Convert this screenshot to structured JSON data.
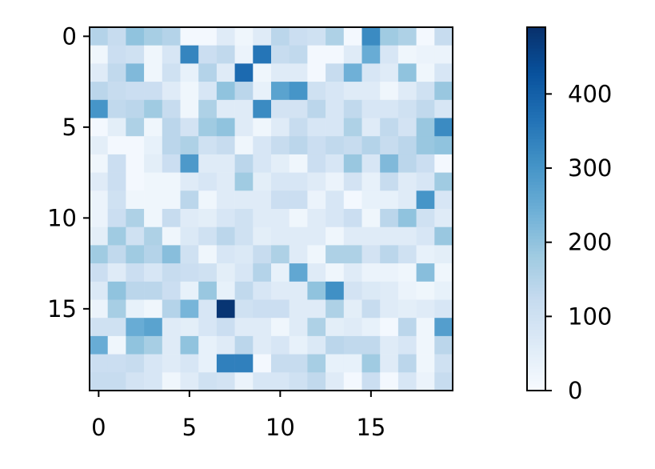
{
  "chart_data": {
    "type": "heatmap",
    "xlim": [
      -0.5,
      19.5
    ],
    "ylim": [
      19.5,
      -0.5
    ],
    "xticks": [
      0,
      5,
      10,
      15
    ],
    "yticks": [
      0,
      5,
      10,
      15
    ],
    "colormap": [
      "#f7fbff",
      "#deebf7",
      "#c6dbef",
      "#9ecae1",
      "#6baed6",
      "#4292c6",
      "#2171b5",
      "#08519c",
      "#08306b"
    ],
    "clim": [
      0,
      490
    ],
    "colorbar_ticks": [
      0,
      100,
      200,
      300,
      400
    ],
    "values": [
      [
        150,
        120,
        200,
        170,
        150,
        10,
        10,
        60,
        20,
        60,
        140,
        110,
        100,
        160,
        10,
        320,
        180,
        160,
        10,
        120
      ],
      [
        20,
        110,
        100,
        20,
        80,
        330,
        110,
        130,
        30,
        360,
        120,
        130,
        10,
        10,
        60,
        250,
        80,
        20,
        30,
        30
      ],
      [
        60,
        130,
        220,
        20,
        100,
        40,
        150,
        60,
        380,
        20,
        60,
        60,
        10,
        120,
        240,
        80,
        60,
        200,
        20,
        80
      ],
      [
        140,
        120,
        110,
        110,
        60,
        20,
        80,
        200,
        140,
        40,
        270,
        300,
        100,
        80,
        60,
        60,
        20,
        60,
        100,
        190
      ],
      [
        300,
        130,
        140,
        180,
        120,
        20,
        160,
        60,
        60,
        320,
        90,
        90,
        140,
        80,
        130,
        80,
        80,
        100,
        130,
        80
      ],
      [
        10,
        50,
        160,
        20,
        140,
        90,
        180,
        200,
        60,
        20,
        60,
        120,
        80,
        80,
        160,
        60,
        130,
        90,
        190,
        320
      ],
      [
        50,
        10,
        10,
        40,
        140,
        160,
        100,
        120,
        20,
        80,
        120,
        140,
        110,
        130,
        120,
        150,
        120,
        140,
        190,
        200
      ],
      [
        20,
        110,
        10,
        50,
        110,
        290,
        60,
        60,
        140,
        80,
        50,
        20,
        110,
        80,
        190,
        80,
        220,
        140,
        110,
        10
      ],
      [
        60,
        110,
        10,
        20,
        20,
        60,
        80,
        60,
        180,
        50,
        80,
        80,
        60,
        30,
        90,
        40,
        120,
        60,
        80,
        180
      ],
      [
        30,
        100,
        20,
        20,
        20,
        140,
        20,
        60,
        60,
        60,
        110,
        110,
        30,
        80,
        10,
        40,
        40,
        60,
        300,
        80
      ],
      [
        30,
        110,
        160,
        20,
        120,
        60,
        50,
        80,
        100,
        60,
        60,
        20,
        60,
        80,
        110,
        20,
        140,
        200,
        100,
        60
      ],
      [
        50,
        180,
        100,
        160,
        20,
        70,
        100,
        140,
        100,
        50,
        60,
        60,
        60,
        20,
        60,
        60,
        60,
        60,
        80,
        190
      ],
      [
        180,
        130,
        180,
        150,
        210,
        100,
        20,
        80,
        70,
        120,
        160,
        60,
        20,
        160,
        160,
        90,
        140,
        100,
        40,
        50
      ],
      [
        110,
        60,
        110,
        80,
        120,
        110,
        100,
        50,
        80,
        150,
        40,
        260,
        60,
        20,
        60,
        30,
        30,
        20,
        210,
        20
      ],
      [
        70,
        200,
        140,
        140,
        110,
        40,
        190,
        40,
        130,
        80,
        60,
        60,
        200,
        310,
        90,
        70,
        60,
        30,
        20,
        40
      ],
      [
        30,
        170,
        40,
        20,
        150,
        230,
        80,
        480,
        100,
        110,
        110,
        60,
        60,
        160,
        50,
        120,
        60,
        50,
        60,
        80
      ],
      [
        100,
        100,
        250,
        270,
        60,
        50,
        80,
        110,
        60,
        60,
        20,
        60,
        160,
        50,
        60,
        40,
        10,
        140,
        20,
        280
      ],
      [
        250,
        20,
        200,
        170,
        60,
        200,
        40,
        60,
        140,
        60,
        80,
        40,
        70,
        140,
        130,
        130,
        60,
        80,
        20,
        140
      ],
      [
        110,
        110,
        120,
        80,
        60,
        80,
        40,
        340,
        340,
        10,
        120,
        120,
        170,
        40,
        40,
        180,
        60,
        140,
        20,
        100
      ],
      [
        120,
        120,
        90,
        80,
        20,
        60,
        100,
        90,
        30,
        80,
        80,
        100,
        130,
        60,
        10,
        110,
        10,
        80,
        30,
        120
      ]
    ]
  }
}
